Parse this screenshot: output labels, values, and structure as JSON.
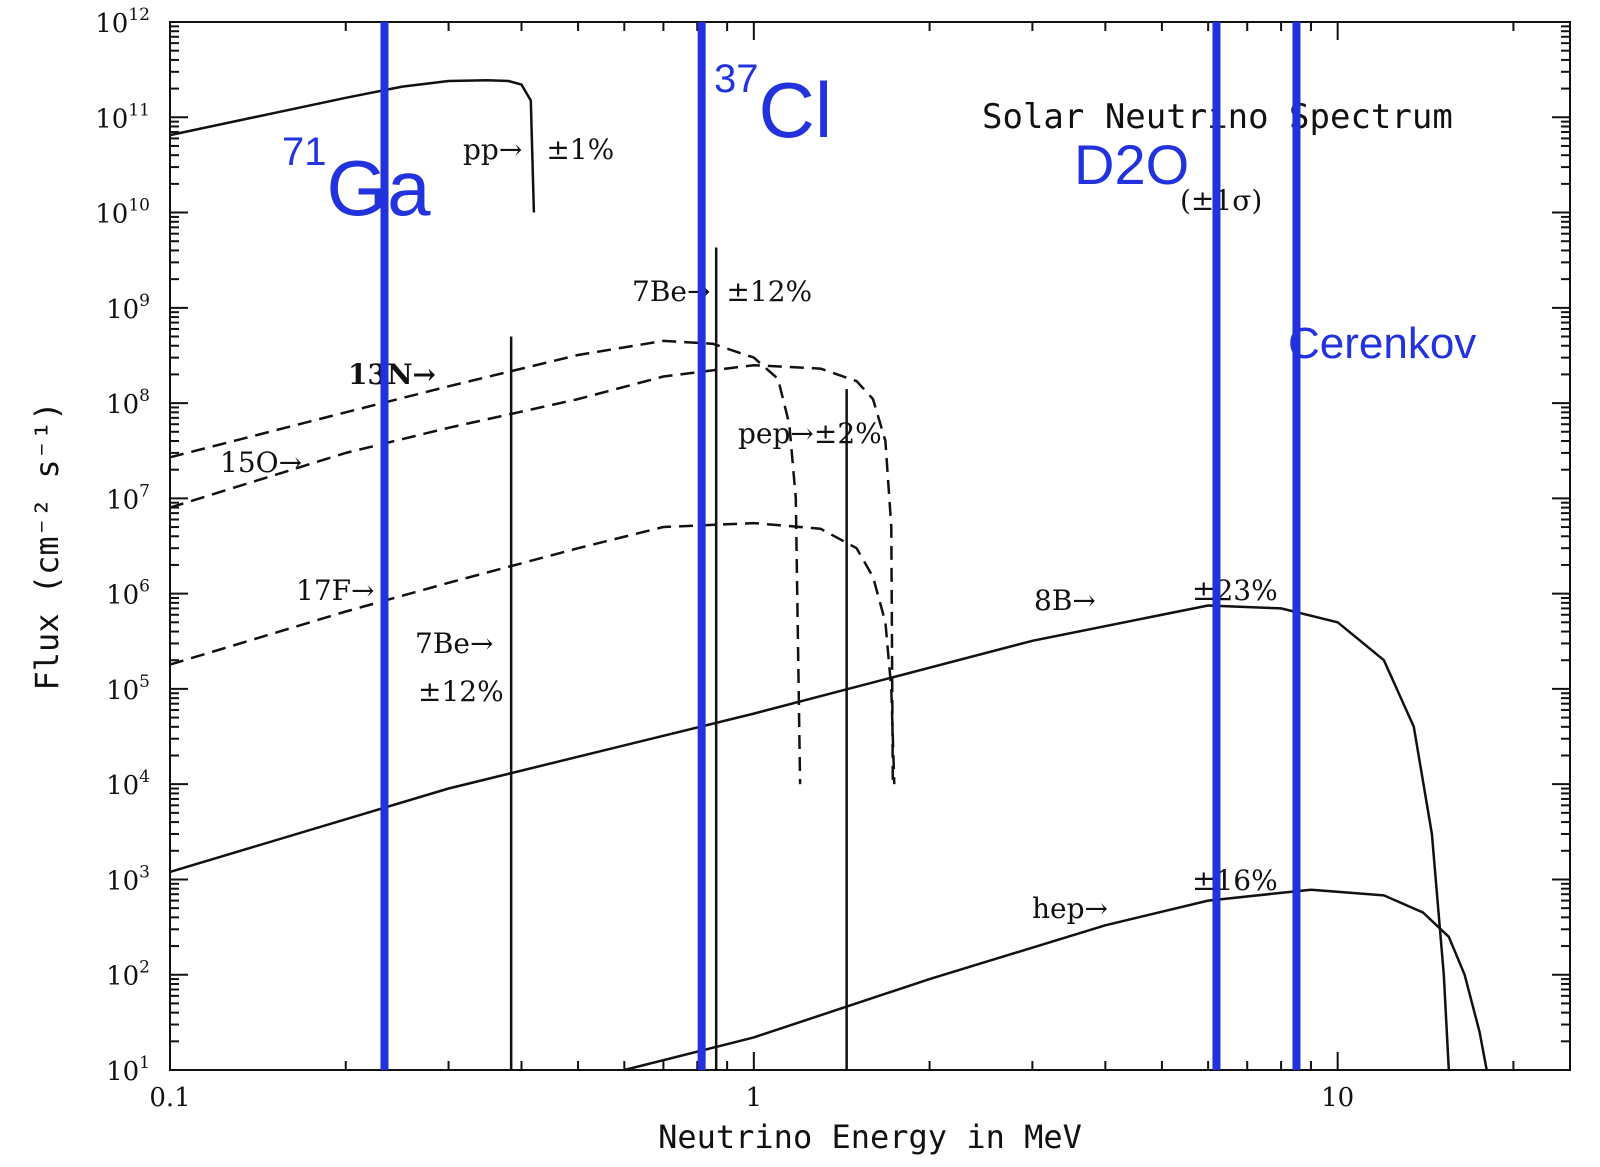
{
  "chart_data": {
    "type": "line",
    "title": "Solar Neutrino Spectrum",
    "xlabel": "Neutrino Energy in MeV",
    "ylabel": "Flux (cm⁻² s⁻¹)",
    "x_scale": "log",
    "y_scale": "log",
    "xlim": [
      0.1,
      25
    ],
    "ylim": [
      10,
      1000000000000.0
    ],
    "x_tick_labels": [
      "0.1",
      "1",
      "10"
    ],
    "y_tick_labels": [
      {
        "base": "10",
        "exp": "1"
      },
      {
        "base": "10",
        "exp": "2"
      },
      {
        "base": "10",
        "exp": "3"
      },
      {
        "base": "10",
        "exp": "4"
      },
      {
        "base": "10",
        "exp": "5"
      },
      {
        "base": "10",
        "exp": "6"
      },
      {
        "base": "10",
        "exp": "7"
      },
      {
        "base": "10",
        "exp": "8"
      },
      {
        "base": "10",
        "exp": "9"
      },
      {
        "base": "10",
        "exp": "10"
      },
      {
        "base": "10",
        "exp": "11"
      },
      {
        "base": "10",
        "exp": "12"
      }
    ],
    "series": [
      {
        "label": "pp",
        "uncertainty": "±1%",
        "style": "solid",
        "x": [
          0.1,
          0.15,
          0.2,
          0.25,
          0.3,
          0.35,
          0.38,
          0.4,
          0.415,
          0.42
        ],
        "y": [
          65000000000.0,
          110000000000.0,
          160000000000.0,
          210000000000.0,
          240000000000.0,
          245000000000.0,
          240000000000.0,
          220000000000.0,
          150000000000.0,
          10000000000.0
        ]
      },
      {
        "label": "13N",
        "style": "dashed",
        "x": [
          0.1,
          0.2,
          0.3,
          0.5,
          0.7,
          0.85,
          1.0,
          1.1,
          1.15,
          1.18,
          1.2
        ],
        "y": [
          27000000.0,
          80000000.0,
          150000000.0,
          320000000.0,
          450000000.0,
          420000000.0,
          300000000.0,
          180000000.0,
          60000000.0,
          10000000.0,
          10000.0
        ]
      },
      {
        "label": "15O",
        "style": "dashed",
        "x": [
          0.1,
          0.2,
          0.3,
          0.5,
          0.7,
          1.0,
          1.3,
          1.5,
          1.6,
          1.68,
          1.72,
          1.73
        ],
        "y": [
          8000000.0,
          30000000.0,
          55000000.0,
          110000000.0,
          190000000.0,
          250000000.0,
          230000000.0,
          170000000.0,
          110000000.0,
          40000000.0,
          5000000.0,
          10000.0
        ]
      },
      {
        "label": "17F",
        "style": "dashed",
        "x": [
          0.1,
          0.2,
          0.3,
          0.5,
          0.7,
          1.0,
          1.3,
          1.5,
          1.6,
          1.68,
          1.72,
          1.74
        ],
        "y": [
          180000.0,
          650000.0,
          1300000.0,
          3000000.0,
          5000000.0,
          5500000.0,
          4800000.0,
          3000000.0,
          1500000.0,
          500000.0,
          100000.0,
          10000.0
        ]
      },
      {
        "label": "8B",
        "uncertainty": "±23%",
        "style": "solid",
        "x": [
          0.1,
          0.3,
          1.0,
          3.0,
          6.0,
          8.0,
          10.0,
          12.0,
          13.5,
          14.5,
          15.2,
          15.5
        ],
        "y": [
          1200.0,
          9000.0,
          55000.0,
          320000.0,
          750000.0,
          700000.0,
          500000.0,
          200000.0,
          40000.0,
          3000.0,
          100,
          10
        ]
      },
      {
        "label": "hep",
        "uncertainty": "±16%",
        "style": "solid",
        "x": [
          0.6,
          1.0,
          2.0,
          4.0,
          6.0,
          9.0,
          12.0,
          14.0,
          15.5,
          16.5,
          17.5,
          18.0
        ],
        "y": [
          10,
          22,
          90,
          330,
          600,
          780,
          680,
          450,
          250,
          100,
          25,
          10
        ]
      }
    ],
    "lines": [
      {
        "label": "7Be",
        "uncertainty": "±12%",
        "x": 0.862,
        "y": 4300000000.0
      },
      {
        "label": "7Be",
        "uncertainty": "±12%",
        "x": 0.384,
        "y": 500000000.0
      },
      {
        "label": "pep",
        "uncertainty": "±2%",
        "x": 1.442,
        "y": 140000000.0
      }
    ],
    "annotations": [
      {
        "text": "pp→",
        "sub": "±1%"
      },
      {
        "text": "13N→"
      },
      {
        "text": "15O→"
      },
      {
        "text": "17F→"
      },
      {
        "text": "7Be→",
        "sub": "±12%"
      },
      {
        "text": "7Be→",
        "sub": "±12%"
      },
      {
        "text": "pep→±2%"
      },
      {
        "text": "8B→",
        "sub": "±23%"
      },
      {
        "text": "hep→",
        "sub": "±16%"
      },
      {
        "text": "(±1σ)"
      }
    ],
    "detector_thresholds": [
      {
        "name": "Ga",
        "sup": "71",
        "x": 0.233
      },
      {
        "name": "Cl",
        "sup": "37",
        "x": 0.814
      },
      {
        "name": "D2O",
        "x": 6.2
      },
      {
        "name": "Cerenkov",
        "x": 8.5
      }
    ],
    "threshold_color": "#2233dd",
    "line_color": "#111111",
    "grid": false
  }
}
